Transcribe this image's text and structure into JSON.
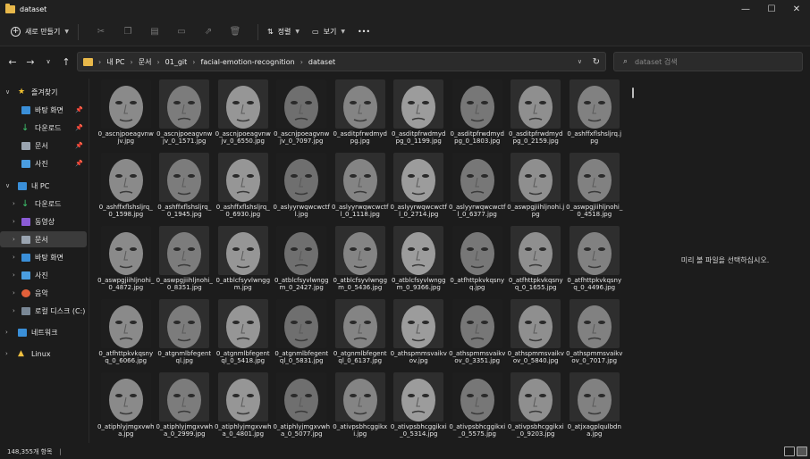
{
  "window": {
    "title": "dataset",
    "minimize": "—",
    "maximize": "☐",
    "close": "✕"
  },
  "toolbar": {
    "new_label": "새로 만들기",
    "sort_label": "정렬",
    "view_label": "보기",
    "more_label": "•••"
  },
  "address": {
    "crumbs": [
      "내 PC",
      "문서",
      "01_git",
      "facial-emotion-recognition",
      "dataset"
    ],
    "search_placeholder": "dataset 검색"
  },
  "sidebar": {
    "quick_access": "즐겨찾기",
    "quick_items": [
      "바탕 화면",
      "다운로드",
      "문서",
      "사진"
    ],
    "this_pc": "내 PC",
    "pc_items": [
      "다운로드",
      "동영상",
      "문서",
      "바탕 화면",
      "사진",
      "음악",
      "로컬 디스크 (C:)"
    ],
    "network": "네트워크",
    "linux": "Linux"
  },
  "files": [
    "0_ascnjpoeagvnwjv.jpg",
    "0_ascnjpoeagvnwjv_0_1571.jpg",
    "0_ascnjpoeagvnwjv_0_6550.jpg",
    "0_ascnjpoeagvnwjv_0_7097.jpg",
    "0_asditpfrwdmydpg.jpg",
    "0_asditpfrwdmydpg_0_1199.jpg",
    "0_asditpfrwdmydpg_0_1803.jpg",
    "0_asditpfrwdmydpg_0_2159.jpg",
    "0_ashffxflshsljrq.jpg",
    "0_ashffxflshsljrq_0_1598.jpg",
    "0_ashffxflshsljrq_0_1945.jpg",
    "0_ashffxflshsljrq_0_6930.jpg",
    "0_aslyyrwqwcwctfl.jpg",
    "0_aslyyrwqwcwctfl_0_1118.jpg",
    "0_aslyyrwqwcwctfl_0_2714.jpg",
    "0_aslyyrwqwcwctfl_0_6377.jpg",
    "0_aswpgjiihljnohi.jpg",
    "0_aswpgjiihljnohi_0_4518.jpg",
    "0_aswpgjiihljnohi_0_4872.jpg",
    "0_aswpgjiihljnohi_0_8351.jpg",
    "0_atblcfsyvlwnggm.jpg",
    "0_atblcfsyvlwnggm_0_2427.jpg",
    "0_atblcfsyvlwnggm_0_5436.jpg",
    "0_atblcfsyvlwnggm_0_9366.jpg",
    "0_atfhttpkvkqsnyq.jpg",
    "0_atfhttpkvkqsnyq_0_1655.jpg",
    "0_atfhttpkvkqsnyq_0_4496.jpg",
    "0_atfhttpkvkqsnyq_0_6066.jpg",
    "0_atgnmlbfegentql.jpg",
    "0_atgnmlbfegentql_0_5418.jpg",
    "0_atgnmlbfegentql_0_5831.jpg",
    "0_atgnmlbfegentql_0_6137.jpg",
    "0_athspmmsvaikvov.jpg",
    "0_athspmmsvaikvov_0_3351.jpg",
    "0_athspmmsvaikvov_0_5840.jpg",
    "0_athspmmsvaikvov_0_7017.jpg",
    "0_atiphlyjmgxvwha.jpg",
    "0_atiphlyjmgxvwha_0_2999.jpg",
    "0_atiphlyjmgxvwha_0_4801.jpg",
    "0_atiphlyjmgxvwha_0_5077.jpg",
    "0_ativpsbhcggikxi.jpg",
    "0_ativpsbhcggikxi_0_5314.jpg",
    "0_ativpsbhcggikxi_0_5575.jpg",
    "0_ativpsbhcggikxi_0_9203.jpg",
    "0_atjxagplqulbdna.jpg"
  ],
  "preview_message": "미리 볼 파일을 선택하십시오.",
  "status": {
    "item_count": "148,355개 항목",
    "bar": "|"
  },
  "colors": {
    "folder": "#e8b84a",
    "selected_bg": "#3b3b3b"
  }
}
